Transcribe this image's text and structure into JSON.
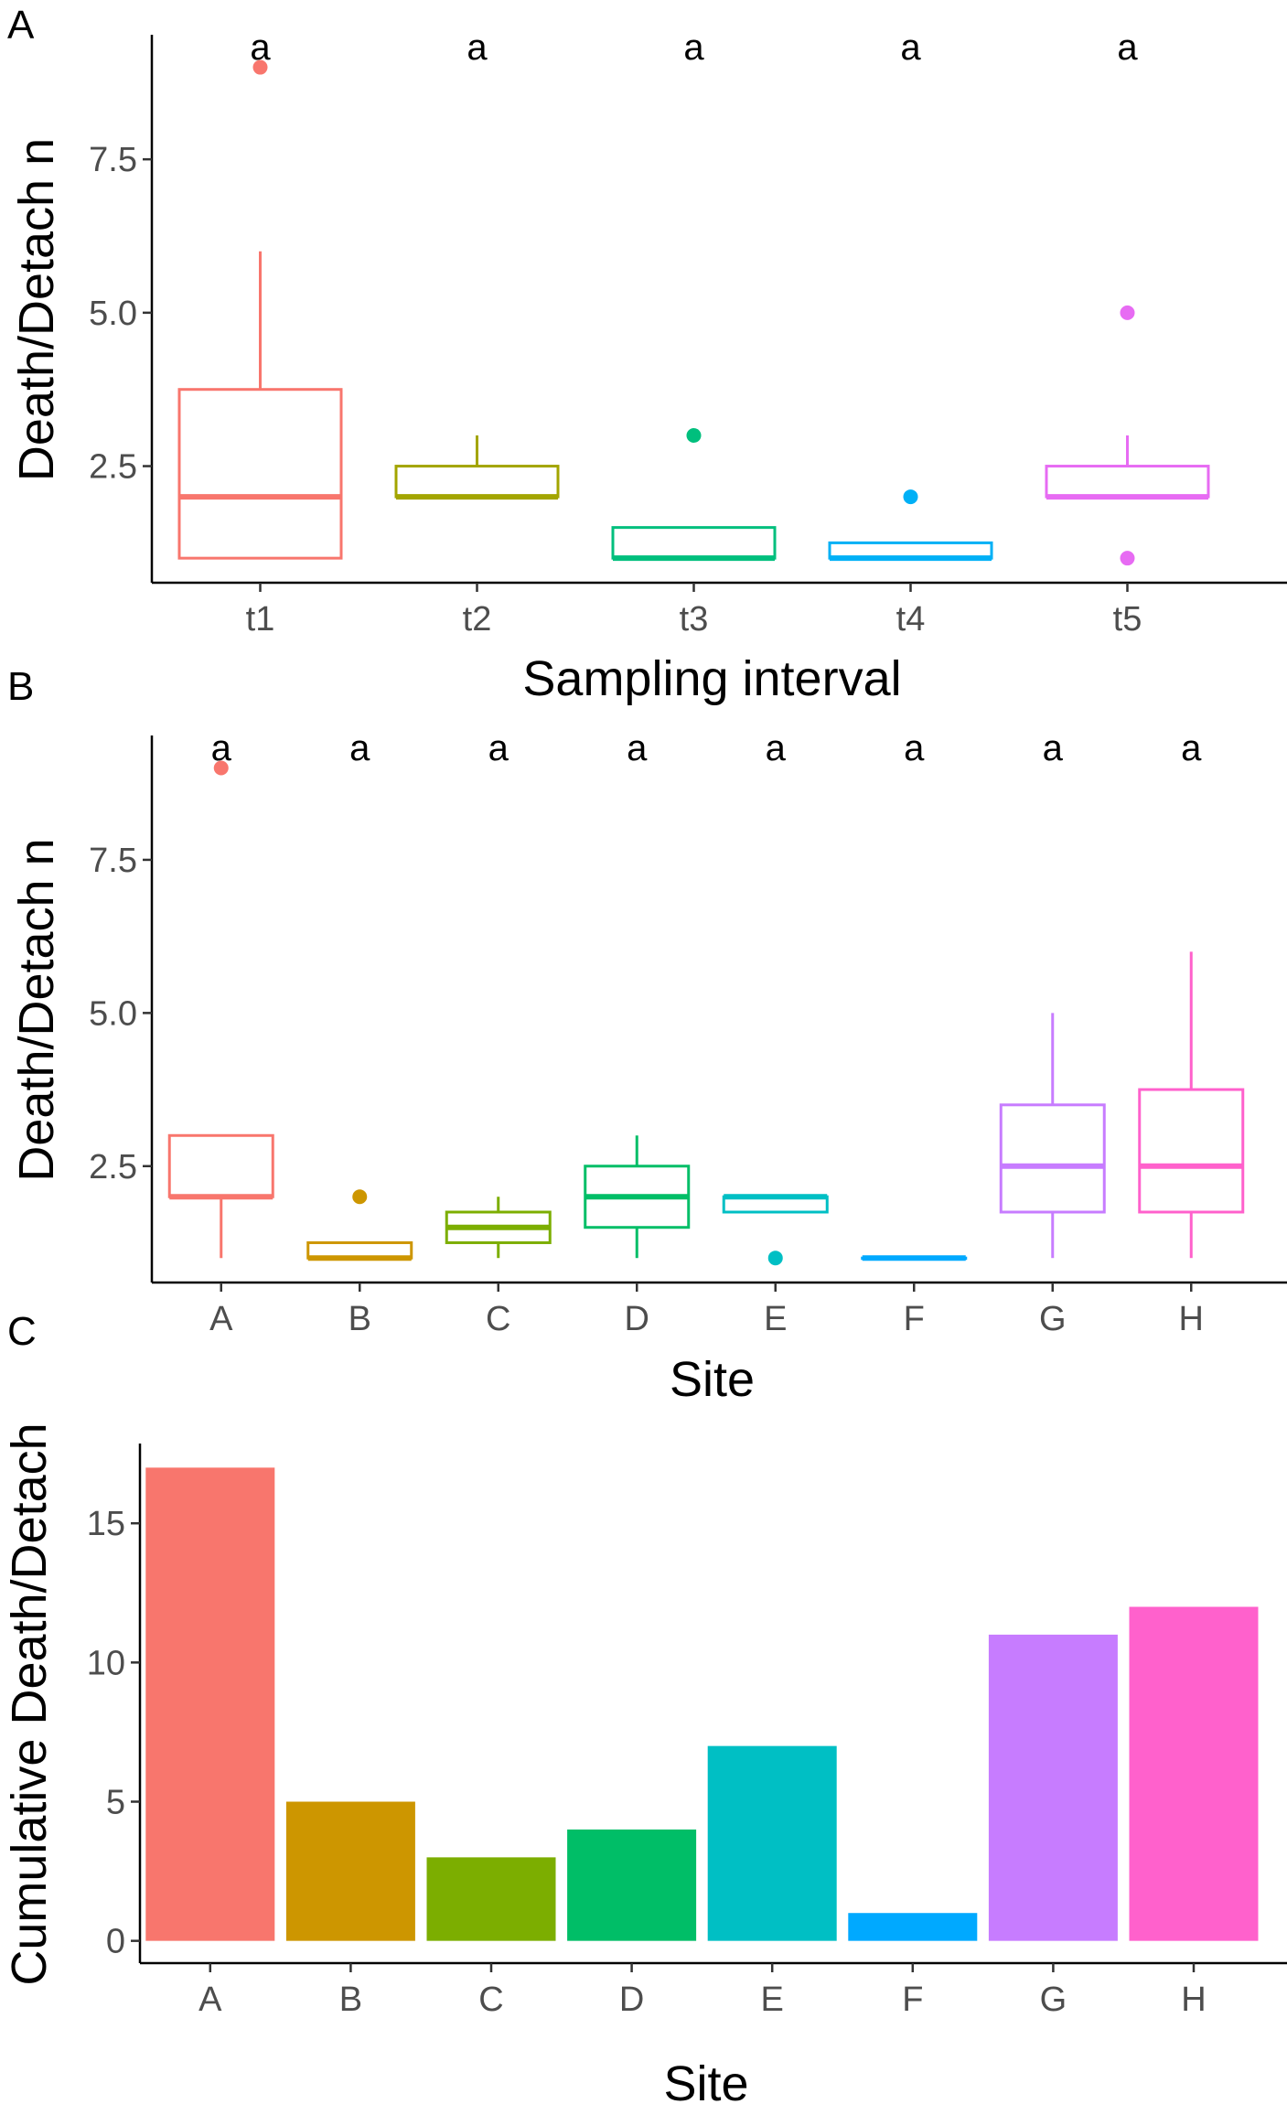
{
  "chart_data": [
    {
      "panel": "A",
      "type": "box",
      "xlabel": "Sampling interval",
      "ylabel": "Death/Detach n",
      "ylim": [
        0.6,
        9.5
      ],
      "yticks": [
        2.5,
        5.0,
        7.5
      ],
      "ytick_labels": [
        "2.5",
        "5.0",
        "7.5"
      ],
      "categories": [
        "t1",
        "t2",
        "t3",
        "t4",
        "t5"
      ],
      "significance": [
        "a",
        "a",
        "a",
        "a",
        "a"
      ],
      "boxes": [
        {
          "label": "t1",
          "color": "#F8766D",
          "min": 1,
          "q1": 1,
          "median": 2,
          "q3": 3.75,
          "max": 6,
          "outliers": [
            9
          ]
        },
        {
          "label": "t2",
          "color": "#A3A500",
          "min": 2,
          "q1": 2,
          "median": 2,
          "q3": 2.5,
          "max": 3,
          "outliers": []
        },
        {
          "label": "t3",
          "color": "#00BF7D",
          "min": 1,
          "q1": 1,
          "median": 1,
          "q3": 1.5,
          "max": 1.5,
          "outliers": [
            3
          ]
        },
        {
          "label": "t4",
          "color": "#00B0F6",
          "min": 1,
          "q1": 1,
          "median": 1,
          "q3": 1.25,
          "max": 1.25,
          "outliers": [
            2
          ]
        },
        {
          "label": "t5",
          "color": "#E76BF3",
          "min": 2,
          "q1": 2,
          "median": 2,
          "q3": 2.5,
          "max": 3,
          "outliers": [
            5,
            1
          ]
        }
      ]
    },
    {
      "panel": "B",
      "type": "box",
      "xlabel": "Site",
      "ylabel": "Death/Detach n",
      "ylim": [
        0.6,
        9.5
      ],
      "yticks": [
        2.5,
        5.0,
        7.5
      ],
      "ytick_labels": [
        "2.5",
        "5.0",
        "7.5"
      ],
      "categories": [
        "A",
        "B",
        "C",
        "D",
        "E",
        "F",
        "G",
        "H"
      ],
      "significance": [
        "a",
        "a",
        "a",
        "a",
        "a",
        "a",
        "a",
        "a"
      ],
      "boxes": [
        {
          "label": "A",
          "color": "#F8766D",
          "min": 1,
          "q1": 2,
          "median": 2,
          "q3": 3,
          "max": 3,
          "outliers": [
            9
          ]
        },
        {
          "label": "B",
          "color": "#CD9600",
          "min": 1,
          "q1": 1,
          "median": 1,
          "q3": 1.25,
          "max": 1.25,
          "outliers": [
            2
          ]
        },
        {
          "label": "C",
          "color": "#7CAE00",
          "min": 1,
          "q1": 1.25,
          "median": 1.5,
          "q3": 1.75,
          "max": 2,
          "outliers": []
        },
        {
          "label": "D",
          "color": "#00BE67",
          "min": 1,
          "q1": 1.5,
          "median": 2,
          "q3": 2.5,
          "max": 3,
          "outliers": []
        },
        {
          "label": "E",
          "color": "#00BFC4",
          "min": 1.75,
          "q1": 1.75,
          "median": 2,
          "q3": 2,
          "max": 2,
          "outliers": [
            1
          ]
        },
        {
          "label": "F",
          "color": "#00A9FF",
          "min": 1,
          "q1": 1,
          "median": 1,
          "q3": 1,
          "max": 1,
          "outliers": []
        },
        {
          "label": "G",
          "color": "#C77CFF",
          "min": 1,
          "q1": 1.75,
          "median": 2.5,
          "q3": 3.5,
          "max": 5,
          "outliers": []
        },
        {
          "label": "H",
          "color": "#FF61CC",
          "min": 1,
          "q1": 1.75,
          "median": 2.5,
          "q3": 3.75,
          "max": 6,
          "outliers": []
        }
      ]
    },
    {
      "panel": "C",
      "type": "bar",
      "xlabel": "Site",
      "ylabel": "Cumulative Death/Detach",
      "ylim": [
        -0.8,
        17.8
      ],
      "yticks": [
        0,
        5,
        10,
        15
      ],
      "ytick_labels": [
        "0",
        "5",
        "10",
        "15"
      ],
      "categories": [
        "A",
        "B",
        "C",
        "D",
        "E",
        "F",
        "G",
        "H"
      ],
      "values": [
        17,
        5,
        3,
        4,
        7,
        1,
        11,
        12
      ],
      "colors": [
        "#F8766D",
        "#CD9600",
        "#7CAE00",
        "#00BE67",
        "#00BFC4",
        "#00A9FF",
        "#C77CFF",
        "#FF61CC"
      ]
    }
  ]
}
